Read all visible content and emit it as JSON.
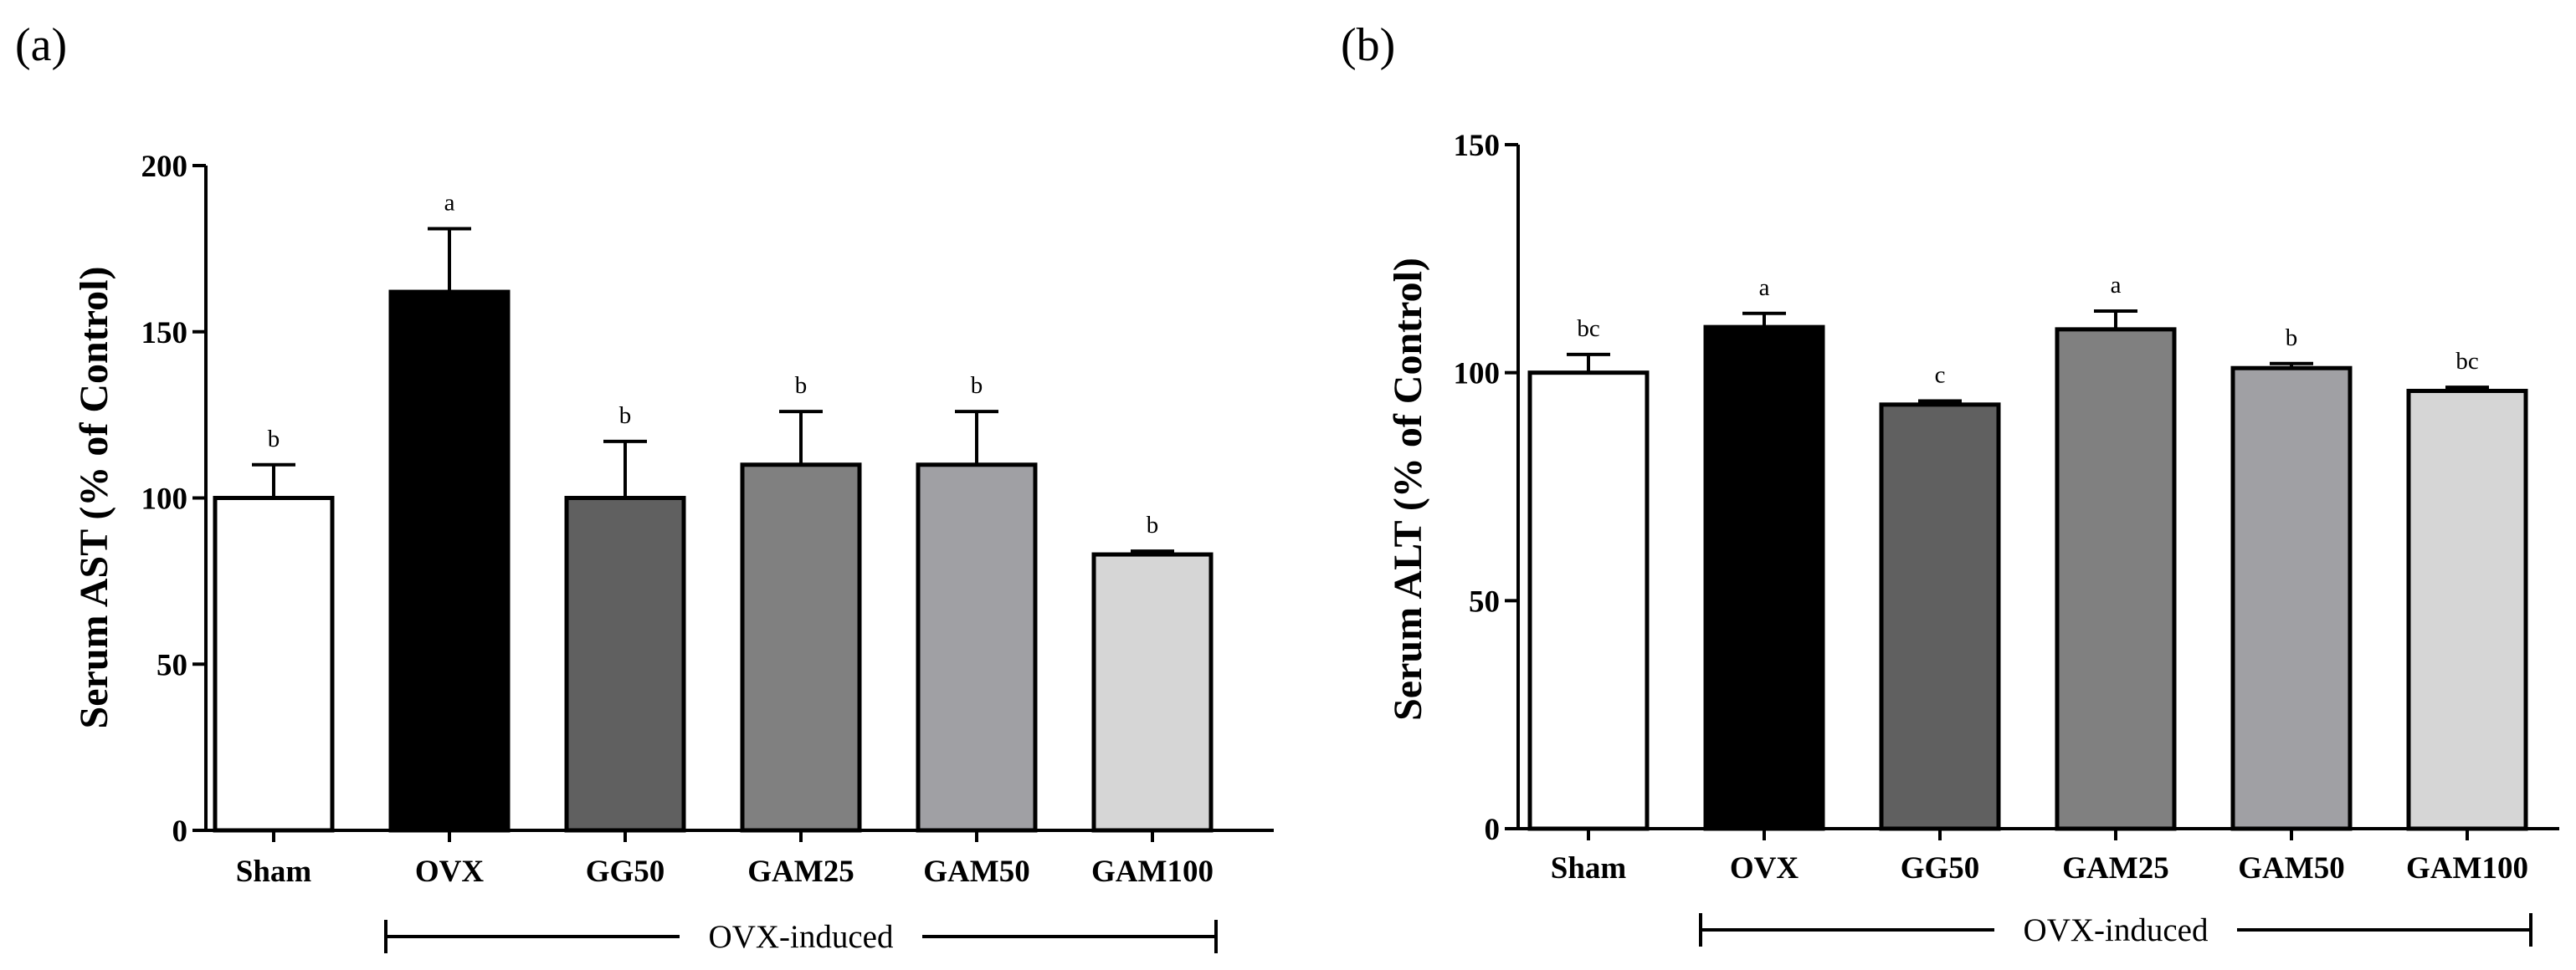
{
  "chart_data": [
    {
      "type": "bar",
      "panel_label": "(a)",
      "title": "",
      "xlabel": "",
      "ylabel": "Serum AST (% of Control)",
      "ylim": [
        0,
        200
      ],
      "yticks": [
        0,
        50,
        100,
        150,
        200
      ],
      "categories": [
        "Sham",
        "OVX",
        "GG50",
        "GAM25",
        "GAM50",
        "GAM100"
      ],
      "values": [
        100,
        162,
        100,
        110,
        110,
        83
      ],
      "errors": [
        10,
        19,
        17,
        16,
        16,
        1
      ],
      "significance": [
        "b",
        "a",
        "b",
        "b",
        "b",
        "b"
      ],
      "colors": [
        "#ffffff",
        "#000000",
        "#606060",
        "#808080",
        "#a0a0a4",
        "#d6d6d6"
      ],
      "group_bracket": {
        "label": "OVX-induced",
        "from_category": "OVX",
        "to_category": "GAM100"
      }
    },
    {
      "type": "bar",
      "panel_label": "(b)",
      "title": "",
      "xlabel": "",
      "ylabel": "Serum ALT (% of Control)",
      "ylim": [
        0,
        150
      ],
      "yticks": [
        0,
        50,
        100,
        150
      ],
      "categories": [
        "Sham",
        "OVX",
        "GG50",
        "GAM25",
        "GAM50",
        "GAM100"
      ],
      "values": [
        100,
        110,
        93,
        109.5,
        101,
        96
      ],
      "errors": [
        4,
        3,
        0.8,
        4,
        1,
        0.8
      ],
      "significance": [
        "bc",
        "a",
        "c",
        "a",
        "b",
        "bc"
      ],
      "colors": [
        "#ffffff",
        "#000000",
        "#606060",
        "#808080",
        "#a0a0a4",
        "#d6d6d6"
      ],
      "group_bracket": {
        "label": "OVX-induced",
        "from_category": "OVX",
        "to_category": "GAM100"
      }
    }
  ]
}
